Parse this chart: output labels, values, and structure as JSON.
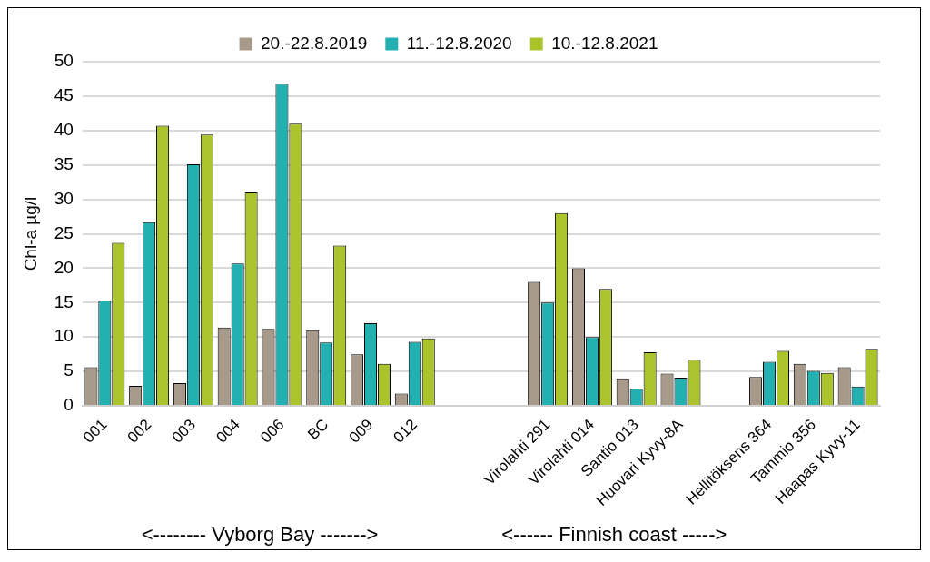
{
  "chart_data": {
    "type": "bar",
    "ylabel": "Chl-a µg/l",
    "categories": [
      "001",
      "002",
      "003",
      "004",
      "006",
      "BC",
      "009",
      "012",
      null,
      null,
      "Virolahti 291",
      "Virolahti 014",
      "Santio 013",
      "Huovari Kyvy-8A",
      null,
      "Hellitöksens 364",
      "Tammio 356",
      "Haapas Kyvy-11"
    ],
    "series": [
      {
        "name": "20.-22.8.2019",
        "color": "#a89a8a",
        "values": [
          5.6,
          2.9,
          3.3,
          11.4,
          11.2,
          11.0,
          7.5,
          1.8,
          null,
          null,
          18.0,
          20.0,
          4.0,
          4.7,
          null,
          4.2,
          6.1,
          5.6
        ]
      },
      {
        "name": "11.-12.8.2020",
        "color": "#22b0b0",
        "values": [
          15.3,
          26.7,
          35.1,
          20.7,
          46.8,
          9.2,
          12.0,
          9.3,
          null,
          null,
          15.0,
          10.0,
          2.5,
          4.1,
          null,
          6.4,
          5.1,
          2.8
        ]
      },
      {
        "name": "10.-12.8.2021",
        "color": "#acc42c",
        "values": [
          23.7,
          40.7,
          39.4,
          31.0,
          41.0,
          23.3,
          6.1,
          9.8,
          null,
          null,
          28.0,
          17.0,
          7.8,
          6.7,
          null,
          8.0,
          4.8,
          8.3
        ]
      }
    ],
    "ylim": [
      0,
      50
    ],
    "yticks": [
      0,
      5,
      10,
      15,
      20,
      25,
      30,
      35,
      40,
      45,
      50
    ],
    "grid": "y",
    "legend": "top",
    "annotations": [
      "<-------- Vyborg Bay ------->",
      "<------ Finnish coast ----->"
    ]
  }
}
